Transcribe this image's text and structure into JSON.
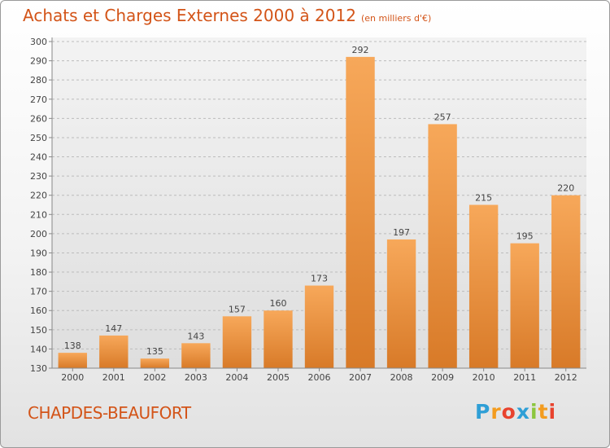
{
  "title": "Achats et Charges Externes 2000 à 2012",
  "subtitle": "(en milliers d'€)",
  "commune": "CHAPDES-BEAUFORT",
  "logo_text": "Proxiti",
  "colors": {
    "accent": "#d35418",
    "bar_light": "#f7a85a",
    "bar_dark": "#d87a28"
  },
  "chart_data": {
    "type": "bar",
    "title": "Achats et Charges Externes 2000 à 2012",
    "categories": [
      "2000",
      "2001",
      "2002",
      "2003",
      "2004",
      "2005",
      "2006",
      "2007",
      "2008",
      "2009",
      "2010",
      "2011",
      "2012"
    ],
    "values": [
      138,
      147,
      135,
      143,
      157,
      160,
      173,
      292,
      197,
      257,
      215,
      195,
      220
    ],
    "ylim": [
      130,
      300
    ],
    "yticks": [
      130,
      140,
      150,
      160,
      170,
      180,
      190,
      200,
      210,
      220,
      230,
      240,
      250,
      260,
      270,
      280,
      290,
      300
    ],
    "grid": true
  }
}
